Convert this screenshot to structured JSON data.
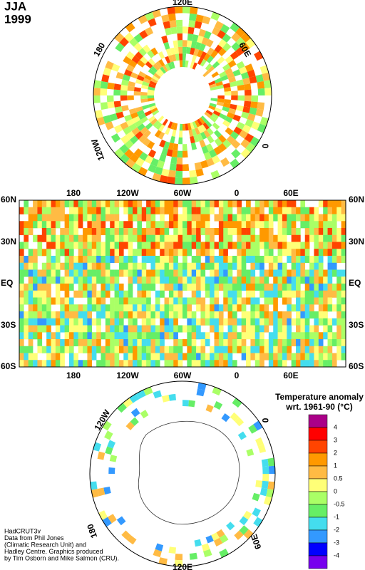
{
  "header": {
    "season": "JJA",
    "year": "1999"
  },
  "north_polar": {
    "labels": [
      "120E",
      "60E",
      "0",
      "120W",
      "180"
    ]
  },
  "map": {
    "lon_labels": [
      "180",
      "120W",
      "60W",
      "0",
      "60E"
    ],
    "lat_labels": [
      "60N",
      "30N",
      "EQ",
      "30S",
      "60S"
    ]
  },
  "south_polar": {
    "labels": [
      "120W",
      "0",
      "180",
      "60E",
      "120E"
    ]
  },
  "legend": {
    "title": [
      "Temperature anomaly",
      "wrt. 1961-90  (°C)"
    ],
    "levels": [
      4,
      3,
      2,
      1,
      0.5,
      0,
      -0.5,
      -1,
      -2,
      -3,
      -4
    ],
    "colors": [
      "#aa0088",
      "#ff0000",
      "#ff4400",
      "#ff9900",
      "#ffbb44",
      "#ffff77",
      "#aaff66",
      "#66ee66",
      "#44ddee",
      "#3399ff",
      "#0000ff",
      "#7700ee"
    ]
  },
  "credits": [
    "HadCRUT3v",
    "Data from Phil Jones",
    "(Climatic Research Unit) and",
    "Hadley Centre.  Graphics produced",
    "by Tim Osborn and Mike Salmon (CRU)."
  ]
}
